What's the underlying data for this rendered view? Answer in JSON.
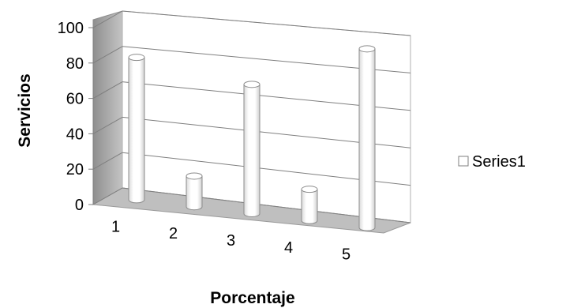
{
  "chart_data": {
    "type": "bar",
    "style": "3d-cylinder",
    "categories": [
      "1",
      "2",
      "3",
      "4",
      "5"
    ],
    "series": [
      {
        "name": "Series1",
        "values": [
          80,
          17,
          71,
          17,
          96
        ]
      }
    ],
    "xlabel": "Porcentaje",
    "ylabel": "Servicios",
    "ylim": [
      0,
      100
    ],
    "y_ticks": [
      "0",
      "20",
      "40",
      "60",
      "80",
      "100"
    ],
    "grid": true,
    "legend_position": "right",
    "colors": {
      "bar_fill": "#ffffff",
      "bar_stroke": "#8c8c8c",
      "wall": "#a6a6a6",
      "floor": "#bfbfbf",
      "grid": "#7f7f7f"
    }
  }
}
